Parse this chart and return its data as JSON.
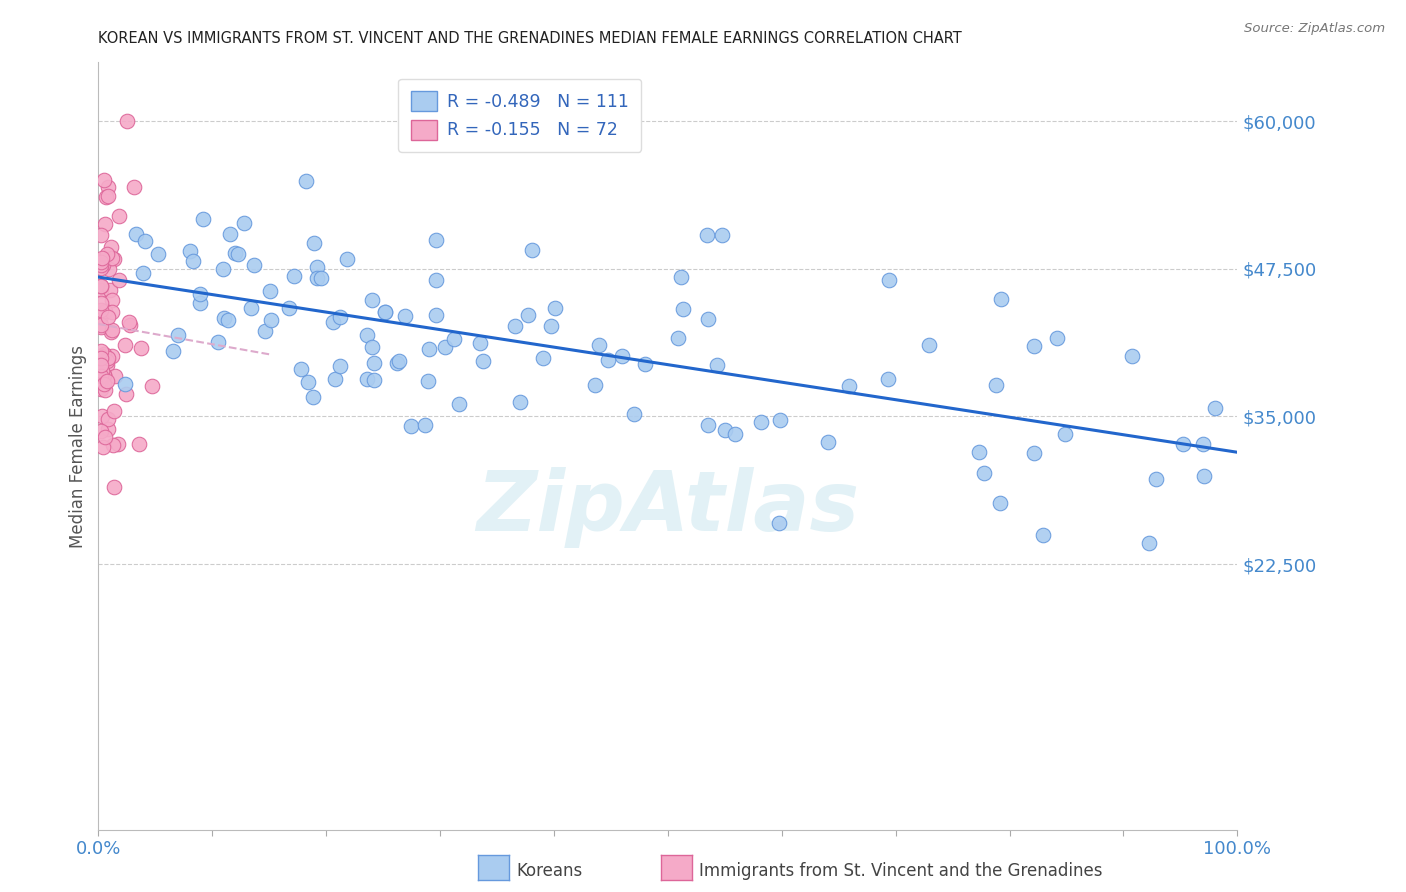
{
  "title": "KOREAN VS IMMIGRANTS FROM ST. VINCENT AND THE GRENADINES MEDIAN FEMALE EARNINGS CORRELATION CHART",
  "source": "Source: ZipAtlas.com",
  "ylabel": "Median Female Earnings",
  "ytick_labels": [
    "$60,000",
    "$47,500",
    "$35,000",
    "$22,500"
  ],
  "ytick_values": [
    60000,
    47500,
    35000,
    22500
  ],
  "ymin": 0,
  "ymax": 65000,
  "xmin": 0.0,
  "xmax": 1.0,
  "korean_color": "#aaccf0",
  "korean_edge_color": "#6699dd",
  "vincent_color": "#f5aac8",
  "vincent_edge_color": "#dd6699",
  "trendline_korean_color": "#2266cc",
  "trendline_vincent_color": "#ddaacc",
  "legend_R_korean": "R = -0.489",
  "legend_N_korean": "N = 111",
  "legend_R_vincent": "R = -0.155",
  "legend_N_vincent": "N = 72",
  "background_color": "#ffffff",
  "grid_color": "#cccccc",
  "title_color": "#222222",
  "axis_label_color": "#4488cc",
  "watermark": "ZipAtlas"
}
